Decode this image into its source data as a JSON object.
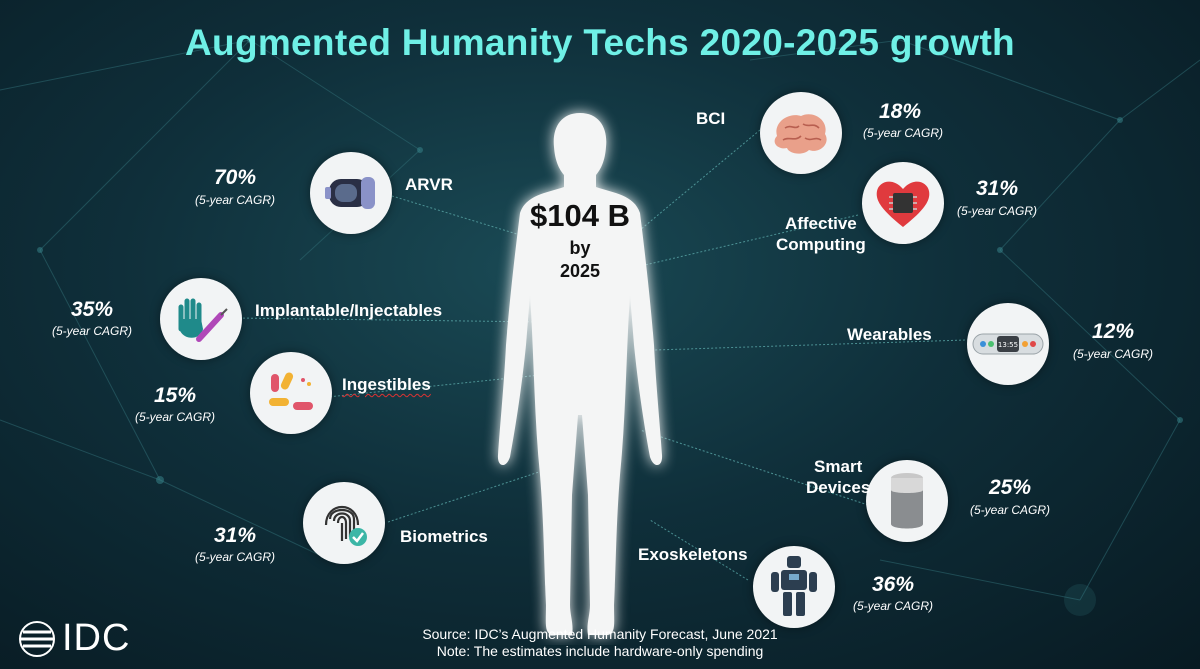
{
  "title": "Augmented Humanity Techs 2020-2025 growth",
  "center": {
    "amount": "$104 B",
    "by": "by",
    "year": "2025"
  },
  "cagr_note": "(5-year CAGR)",
  "categories": {
    "arvr": {
      "label": "ARVR",
      "pct": "70%",
      "icon": "vr-headset-icon"
    },
    "implantable": {
      "label": "Implantable/Injectables",
      "pct": "35%",
      "icon": "glove-syringe-icon"
    },
    "ingestibles": {
      "label": "Ingestibles",
      "pct": "15%",
      "icon": "pills-icon"
    },
    "biometrics": {
      "label": "Biometrics",
      "pct": "31%",
      "icon": "fingerprint-icon"
    },
    "bci": {
      "label": "BCI",
      "pct": "18%",
      "icon": "brain-icon"
    },
    "affective": {
      "label_line1": "Affective",
      "label_line2": "Computing",
      "pct": "31%",
      "icon": "heart-chip-icon"
    },
    "wearables": {
      "label": "Wearables",
      "pct": "12%",
      "icon": "fitness-band-icon"
    },
    "smart": {
      "label_line1": "Smart",
      "label_line2": "Devices",
      "pct": "25%",
      "icon": "smart-speaker-icon"
    },
    "exo": {
      "label": "Exoskeletons",
      "pct": "36%",
      "icon": "robot-exoskeleton-icon"
    }
  },
  "footer": {
    "source": "Source: IDC’s Augmented Humanity Forecast, June 2021",
    "note": "Note: The estimates include hardware-only spending"
  },
  "logo": {
    "text": "IDC"
  },
  "colors": {
    "title": "#6ff0e6",
    "background": "#0f2f3a"
  }
}
